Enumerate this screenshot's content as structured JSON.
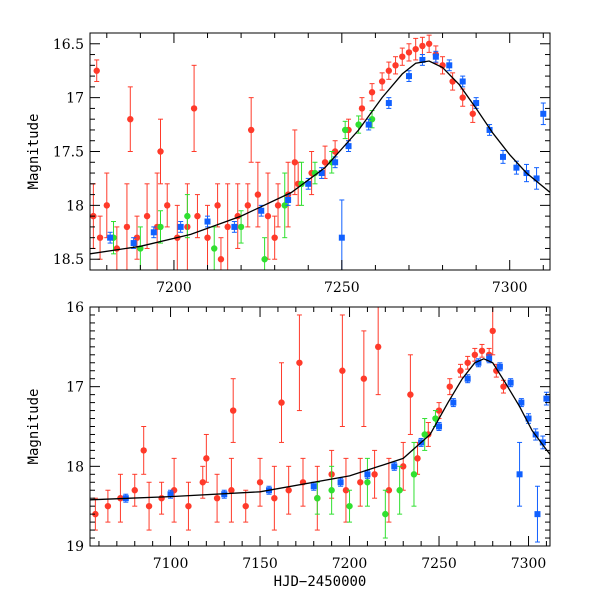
{
  "chart_data": [
    {
      "type": "scatter",
      "panel": "top",
      "xlabel": "",
      "ylabel": "Magnitude",
      "xlim": [
        7175,
        7312
      ],
      "ylim": [
        18.6,
        16.4
      ],
      "x_major_ticks": [
        7200,
        7250,
        7300
      ],
      "x_tick_labels": [
        "7200",
        "7250",
        "7300"
      ],
      "y_major_ticks": [
        16.5,
        17,
        17.5,
        18,
        18.5
      ],
      "y_tick_labels": [
        "16.5",
        "17",
        "17.5",
        "18",
        "18.5"
      ],
      "colors": {
        "red": "#ff3a2a",
        "green": "#30e030",
        "blue": "#1060ff",
        "model": "#000000"
      },
      "model_curve": {
        "x": [
          7175,
          7190,
          7205,
          7220,
          7235,
          7245,
          7255,
          7262,
          7268,
          7272,
          7276,
          7280,
          7285,
          7290,
          7295,
          7300,
          7305,
          7312
        ],
        "y": [
          18.45,
          18.38,
          18.27,
          18.1,
          17.88,
          17.65,
          17.3,
          17.0,
          16.78,
          16.68,
          16.66,
          16.72,
          16.88,
          17.1,
          17.33,
          17.53,
          17.7,
          17.88
        ]
      },
      "series": [
        {
          "name": "red",
          "color": "#ff3a2a",
          "x": [
            7176,
            7178,
            7180,
            7183,
            7186,
            7189,
            7192,
            7195,
            7198,
            7201,
            7204,
            7207,
            7210,
            7213,
            7216,
            7219,
            7222,
            7225,
            7228,
            7231,
            7234,
            7237,
            7241,
            7245,
            7248,
            7252,
            7256,
            7259,
            7262,
            7264,
            7266,
            7268,
            7270,
            7272,
            7274,
            7276,
            7278,
            7280,
            7283,
            7286,
            7289,
            7177,
            7187,
            7196,
            7206,
            7214,
            7223,
            7230,
            7236
          ],
          "y": [
            18.1,
            18.3,
            18.0,
            18.4,
            18.2,
            18.3,
            18.1,
            18.2,
            18.0,
            18.3,
            18.2,
            18.1,
            18.3,
            18.0,
            18.2,
            18.1,
            18.0,
            17.9,
            18.1,
            18.0,
            17.9,
            17.8,
            17.7,
            17.6,
            17.5,
            17.3,
            17.1,
            16.95,
            16.85,
            16.75,
            16.7,
            16.62,
            16.58,
            16.55,
            16.52,
            16.5,
            16.6,
            16.7,
            16.85,
            17.0,
            17.15,
            16.75,
            17.2,
            17.5,
            17.1,
            18.5,
            17.3,
            18.3,
            17.6
          ],
          "err": [
            0.3,
            0.2,
            0.3,
            0.2,
            0.4,
            0.2,
            0.3,
            0.5,
            0.2,
            0.3,
            0.4,
            0.2,
            0.3,
            0.2,
            0.4,
            0.3,
            0.2,
            0.3,
            0.4,
            0.2,
            0.3,
            0.2,
            0.2,
            0.15,
            0.1,
            0.1,
            0.1,
            0.08,
            0.08,
            0.08,
            0.08,
            0.08,
            0.08,
            0.1,
            0.08,
            0.08,
            0.08,
            0.08,
            0.08,
            0.08,
            0.08,
            0.1,
            0.3,
            0.3,
            0.4,
            0.2,
            0.3,
            0.2,
            0.3
          ]
        },
        {
          "name": "green",
          "color": "#30e030",
          "x": [
            7182,
            7190,
            7196,
            7204,
            7212,
            7220,
            7227,
            7233,
            7238,
            7242,
            7247,
            7251,
            7255,
            7259
          ],
          "y": [
            18.3,
            18.4,
            18.2,
            18.1,
            18.4,
            18.2,
            18.5,
            18.0,
            17.8,
            17.7,
            17.6,
            17.3,
            17.25,
            17.2
          ],
          "err": [
            0.15,
            0.2,
            0.15,
            0.2,
            0.2,
            0.15,
            0.2,
            0.3,
            0.2,
            0.1,
            0.1,
            0.08,
            0.08,
            0.08
          ]
        },
        {
          "name": "blue",
          "color": "#1060ff",
          "x": [
            7181,
            7188,
            7194,
            7202,
            7210,
            7218,
            7226,
            7234,
            7240,
            7244,
            7248,
            7252,
            7258,
            7264,
            7270,
            7274,
            7278,
            7282,
            7286,
            7290,
            7294,
            7298,
            7302,
            7305,
            7308,
            7310,
            7250
          ],
          "y": [
            18.3,
            18.35,
            18.25,
            18.2,
            18.15,
            18.2,
            18.05,
            17.95,
            17.8,
            17.7,
            17.6,
            17.45,
            17.25,
            17.05,
            16.8,
            16.65,
            16.62,
            16.7,
            16.85,
            17.05,
            17.3,
            17.55,
            17.65,
            17.7,
            17.75,
            17.15,
            18.3
          ],
          "err": [
            0.05,
            0.05,
            0.05,
            0.05,
            0.05,
            0.05,
            0.05,
            0.05,
            0.05,
            0.05,
            0.05,
            0.05,
            0.05,
            0.05,
            0.05,
            0.05,
            0.05,
            0.05,
            0.05,
            0.05,
            0.05,
            0.06,
            0.06,
            0.08,
            0.1,
            0.1,
            0.35
          ]
        }
      ]
    },
    {
      "type": "scatter",
      "panel": "bottom",
      "xlabel": "HJD−2450000",
      "ylabel": "Magnitude",
      "xlim": [
        7055,
        7312
      ],
      "ylim": [
        19,
        16
      ],
      "x_major_ticks": [
        7100,
        7150,
        7200,
        7250,
        7300
      ],
      "x_tick_labels": [
        "7100",
        "7150",
        "7200",
        "7250",
        "7300"
      ],
      "y_major_ticks": [
        16,
        17,
        18,
        19
      ],
      "y_tick_labels": [
        "16",
        "17",
        "18",
        "19"
      ],
      "colors": {
        "red": "#ff3a2a",
        "green": "#30e030",
        "blue": "#1060ff",
        "model": "#000000"
      },
      "model_curve": {
        "x": [
          7055,
          7100,
          7150,
          7200,
          7230,
          7245,
          7255,
          7263,
          7270,
          7275,
          7280,
          7287,
          7295,
          7302,
          7312
        ],
        "y": [
          18.42,
          18.38,
          18.32,
          18.12,
          17.9,
          17.6,
          17.2,
          16.9,
          16.7,
          16.65,
          16.7,
          16.95,
          17.25,
          17.55,
          17.85
        ]
      },
      "series": [
        {
          "name": "red",
          "color": "#ff3a2a",
          "x": [
            7058,
            7065,
            7072,
            7080,
            7088,
            7095,
            7102,
            7110,
            7118,
            7126,
            7134,
            7142,
            7150,
            7158,
            7166,
            7174,
            7182,
            7190,
            7198,
            7206,
            7214,
            7222,
            7230,
            7238,
            7244,
            7250,
            7256,
            7262,
            7266,
            7270,
            7274,
            7278,
            7282,
            7286,
            7085,
            7120,
            7135,
            7162,
            7172,
            7196,
            7208,
            7216,
            7234,
            7280
          ],
          "y": [
            18.6,
            18.5,
            18.4,
            18.3,
            18.5,
            18.4,
            18.3,
            18.5,
            18.2,
            18.4,
            18.3,
            18.5,
            18.2,
            18.4,
            18.3,
            18.2,
            18.4,
            18.1,
            18.3,
            18.2,
            18.1,
            18.3,
            18.0,
            17.9,
            17.6,
            17.3,
            17.0,
            16.8,
            16.7,
            16.6,
            16.55,
            16.6,
            16.8,
            17.0,
            17.8,
            17.9,
            17.3,
            17.2,
            16.7,
            16.8,
            16.9,
            16.5,
            17.1,
            16.3
          ],
          "err": [
            0.2,
            0.2,
            0.3,
            0.2,
            0.3,
            0.2,
            0.4,
            0.3,
            0.2,
            0.3,
            0.4,
            0.2,
            0.3,
            0.4,
            0.3,
            0.3,
            0.4,
            0.3,
            0.4,
            0.3,
            0.3,
            0.4,
            0.3,
            0.2,
            0.15,
            0.1,
            0.1,
            0.08,
            0.08,
            0.08,
            0.08,
            0.08,
            0.08,
            0.08,
            0.3,
            0.3,
            0.4,
            0.5,
            0.6,
            0.7,
            0.6,
            0.6,
            0.5,
            0.3
          ]
        },
        {
          "name": "green",
          "color": "#30e030",
          "x": [
            7182,
            7190,
            7200,
            7210,
            7220,
            7228,
            7236,
            7242,
            7248
          ],
          "y": [
            18.4,
            18.3,
            18.5,
            18.2,
            18.6,
            18.3,
            18.1,
            17.6,
            17.4
          ],
          "err": [
            0.2,
            0.3,
            0.2,
            0.3,
            0.3,
            0.3,
            0.4,
            0.2,
            0.1
          ]
        },
        {
          "name": "blue",
          "color": "#1060ff",
          "x": [
            7075,
            7100,
            7130,
            7155,
            7180,
            7195,
            7210,
            7225,
            7240,
            7250,
            7258,
            7266,
            7272,
            7278,
            7284,
            7290,
            7296,
            7300,
            7304,
            7308,
            7310,
            7295,
            7305
          ],
          "y": [
            18.4,
            18.35,
            18.35,
            18.3,
            18.25,
            18.2,
            18.1,
            18.0,
            17.7,
            17.5,
            17.2,
            16.9,
            16.7,
            16.65,
            16.75,
            16.95,
            17.2,
            17.4,
            17.6,
            17.7,
            17.15,
            18.1,
            18.6
          ],
          "err": [
            0.05,
            0.05,
            0.05,
            0.05,
            0.05,
            0.05,
            0.05,
            0.05,
            0.05,
            0.05,
            0.05,
            0.05,
            0.05,
            0.05,
            0.05,
            0.05,
            0.05,
            0.06,
            0.07,
            0.08,
            0.08,
            0.4,
            0.35
          ]
        }
      ]
    }
  ]
}
